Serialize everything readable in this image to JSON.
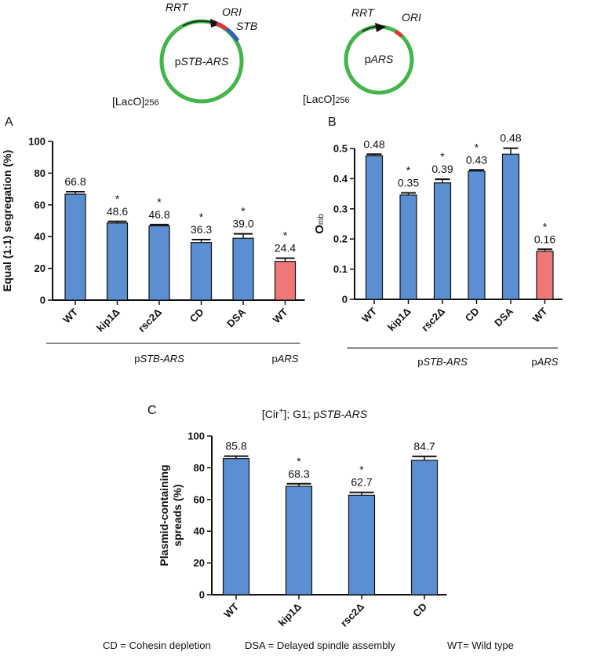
{
  "plasmids": {
    "left": {
      "name_prefix": "p",
      "name_italic": "STB-ARS",
      "labels": {
        "rrt": "RRT",
        "ori": "ORI",
        "stb": "STB"
      },
      "laco": "[LacO]",
      "laco_sub": "256"
    },
    "right": {
      "name_prefix": "p",
      "name_italic": "ARS",
      "labels": {
        "rrt": "RRT",
        "ori": "ORI"
      },
      "laco": "[LacO]",
      "laco_sub": "256"
    }
  },
  "colors": {
    "blue": "#5b8fd1",
    "salmon": "#f07777",
    "ring": "#43b549",
    "ori": "#e0333b",
    "stb": "#2d62b5"
  },
  "chart_data": [
    {
      "panel": "A",
      "type": "bar",
      "ylabel": "Equal (1:1) segregation (%)",
      "ylim": [
        0,
        100
      ],
      "yticks": [
        "0",
        "20",
        "40",
        "60",
        "80",
        "100"
      ],
      "categories": [
        "WT",
        "kip1Δ",
        "rsc2Δ",
        "CD",
        "DSA",
        "WT"
      ],
      "values": [
        66.8,
        48.6,
        46.8,
        36.3,
        39.0,
        24.4
      ],
      "errors": [
        1.5,
        1.0,
        0.8,
        1.8,
        2.8,
        2.0
      ],
      "value_labels": [
        "66.8",
        "48.6",
        "46.8",
        "36.3",
        "39.0",
        "24.4"
      ],
      "significance": [
        "",
        "*",
        "*",
        "*",
        "*",
        "*"
      ],
      "bar_colors": [
        "blue",
        "blue",
        "blue",
        "blue",
        "blue",
        "salmon"
      ],
      "groups": [
        {
          "prefix": "p",
          "italic": "STB-ARS",
          "start": 0,
          "end": 4
        },
        {
          "prefix": "p",
          "italic": "ARS",
          "start": 5,
          "end": 5
        }
      ]
    },
    {
      "panel": "B",
      "type": "bar",
      "ylabel": "O",
      "ylabel_sub": "mb",
      "ylim": [
        0,
        0.5
      ],
      "yticks": [
        "0",
        "0.1",
        "0.2",
        "0.3",
        "0.4",
        "0.5"
      ],
      "categories": [
        "WT",
        "kip1Δ",
        "rsc2Δ",
        "CD",
        "DSA",
        "WT"
      ],
      "values": [
        0.476,
        0.346,
        0.386,
        0.425,
        0.481,
        0.159
      ],
      "errors": [
        0.005,
        0.007,
        0.012,
        0.004,
        0.02,
        0.007
      ],
      "value_labels": [
        "0.48",
        "0.35",
        "0.39",
        "0.43",
        "0.48",
        "0.16"
      ],
      "significance": [
        "",
        "*",
        "*",
        "*",
        "",
        "*"
      ],
      "bar_colors": [
        "blue",
        "blue",
        "blue",
        "blue",
        "blue",
        "salmon"
      ],
      "groups": [
        {
          "prefix": "p",
          "italic": "STB-ARS",
          "start": 0,
          "end": 4
        },
        {
          "prefix": "p",
          "italic": "ARS",
          "start": 5,
          "end": 5
        }
      ]
    },
    {
      "panel": "C",
      "type": "bar",
      "title_prefix": "[Cir",
      "title_sup": "+",
      "title_mid": "]; G1; p",
      "title_italic": "STB-ARS",
      "ylabel": "Plasmid-containing spreads (%)",
      "ylabel_lines": [
        "Plasmid-containing",
        "spreads (%)"
      ],
      "ylim": [
        0,
        100
      ],
      "yticks": [
        "0",
        "20",
        "40",
        "60",
        "80",
        "100"
      ],
      "categories": [
        "WT",
        "kip1Δ",
        "rsc2Δ",
        "CD"
      ],
      "values": [
        85.8,
        68.3,
        62.7,
        84.7
      ],
      "errors": [
        1.5,
        1.6,
        1.8,
        2.5
      ],
      "value_labels": [
        "85.8",
        "68.3",
        "62.7",
        "84.7"
      ],
      "significance": [
        "",
        "*",
        "*",
        ""
      ],
      "bar_colors": [
        "blue",
        "blue",
        "blue",
        "blue"
      ]
    }
  ],
  "legend": {
    "cd": "CD = Cohesin depletion",
    "dsa": "DSA = Delayed spindle assembly",
    "wt": "WT= Wild type"
  }
}
